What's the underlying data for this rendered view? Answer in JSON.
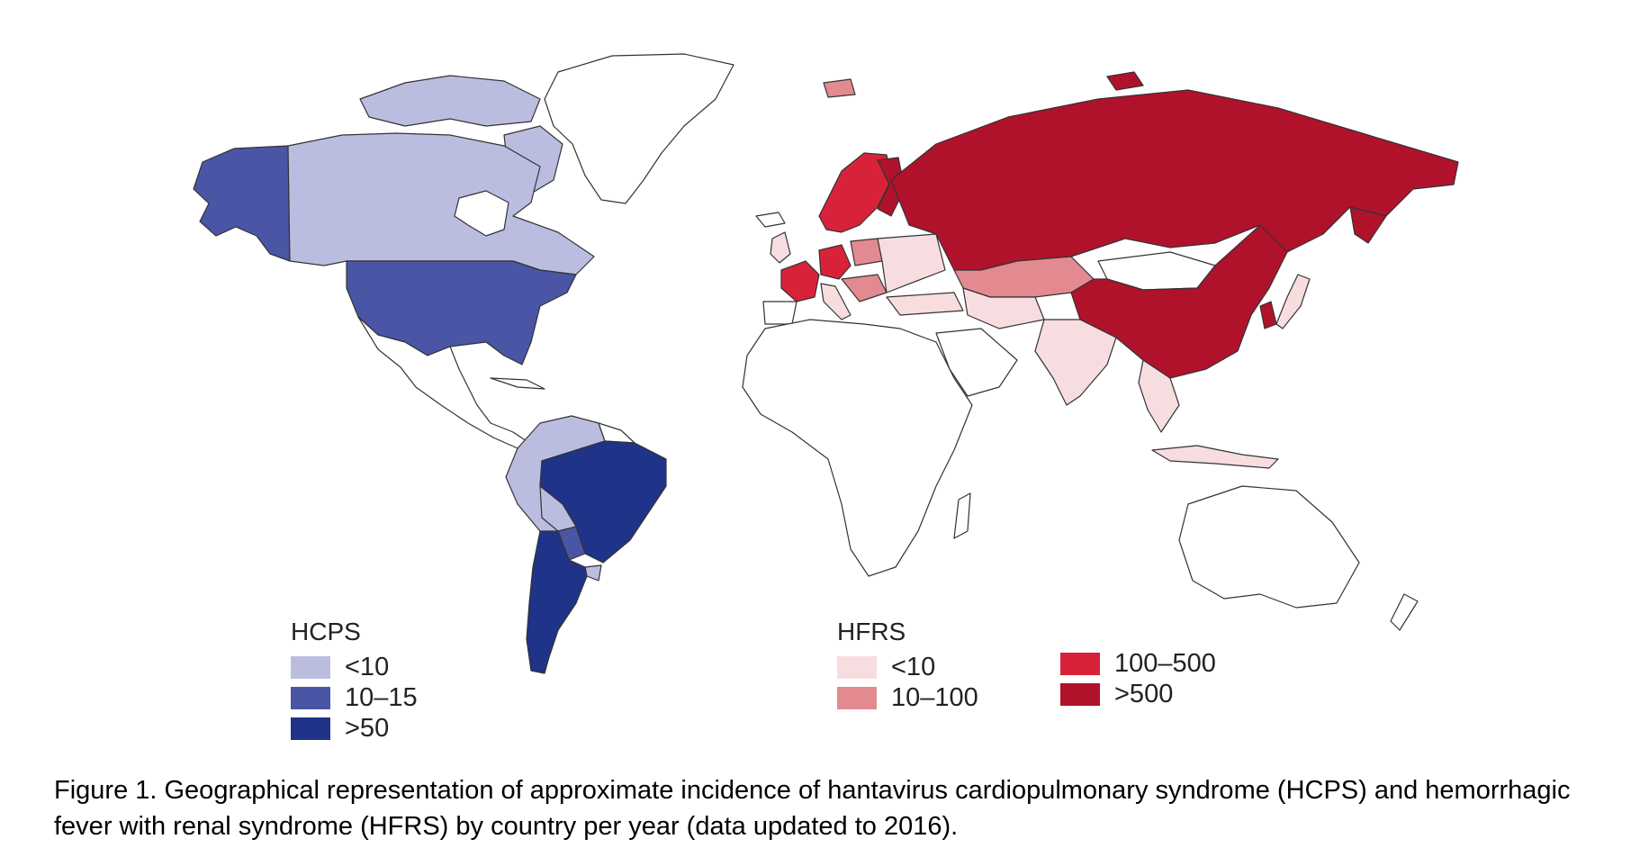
{
  "legends": {
    "hcps": {
      "title": "HCPS",
      "items": [
        {
          "label": "<10",
          "color": "#bbbde0"
        },
        {
          "label": "10–15",
          "color": "#4a55a6"
        },
        {
          "label": ">50",
          "color": "#1f3389"
        }
      ]
    },
    "hfrs": {
      "title": "HFRS",
      "items": [
        {
          "label": "<10",
          "color": "#f7dde0"
        },
        {
          "label": "10–100",
          "color": "#e38a91"
        },
        {
          "label": "100–500",
          "color": "#d8223a"
        },
        {
          "label": ">500",
          "color": "#b0122c"
        }
      ]
    }
  },
  "regions": {
    "alaska": "10–15",
    "canada": "<10",
    "united_states": "10–15",
    "colombia_venezuela_ecuador_peru": "<10",
    "brazil": ">50",
    "bolivia": "<10",
    "paraguay": "10–15",
    "uruguay": "<10",
    "argentina_chile": ">50",
    "france": "100–500",
    "germany": "100–500",
    "scandinavia": "100–500",
    "poland": "10–100",
    "russia": ">500",
    "china": ">500",
    "korea": ">500",
    "kazakhstan": "10–100",
    "india": "<10",
    "southeast_asia": "<10",
    "japan": "<10"
  },
  "caption": "Figure 1.  Geographical representation of approximate incidence of hantavirus cardiopulmonary syndrome (HCPS) and hemorrhagic fever with renal syndrome (HFRS) by country per year (data updated to 2016)."
}
